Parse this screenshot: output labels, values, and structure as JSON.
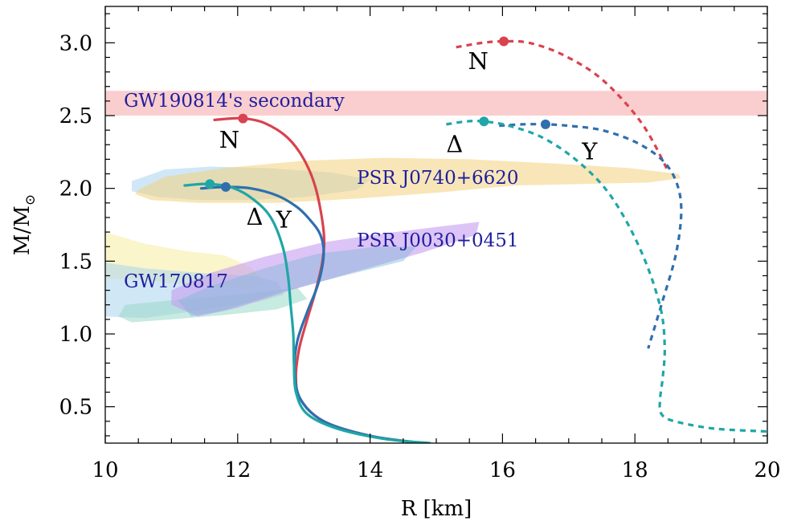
{
  "chart_data": {
    "type": "line",
    "xlabel": "R [km]",
    "ylabel": "M/M",
    "ylabel_subscript": "⊙",
    "xlim": [
      10,
      20
    ],
    "ylim": [
      0.25,
      3.25
    ],
    "xticks": [
      "10",
      "12",
      "14",
      "16",
      "18",
      "20"
    ],
    "yticks": [
      "0.5",
      "1.0",
      "1.5",
      "2.0",
      "2.5",
      "3.0"
    ],
    "grid": false,
    "colors": {
      "N": "#d9424f",
      "Y": "#2f6fae",
      "Delta": "#1fa6a6",
      "gw190814": "#f7b3b3",
      "j0740": "#f2d27e",
      "j0740_alt": "#a9d4ee",
      "j0030": "#c79cf0",
      "j0030_alt": "#7fb8d8",
      "gw170817_a": "#f5ec9e",
      "gw170817_b": "#a9d4ee",
      "gw170817_c": "#99d9c9",
      "annotation_text": "#1f1f9e"
    },
    "series": [
      {
        "key": "N",
        "style": "solid",
        "x": [
          11.65,
          11.9,
          12.1,
          12.4,
          12.75,
          13.0,
          13.18,
          13.3,
          13.28,
          13.18,
          13.05,
          12.93,
          12.88,
          12.95,
          13.3,
          14.0,
          14.8
        ],
        "y": [
          2.47,
          2.48,
          2.48,
          2.45,
          2.35,
          2.2,
          2.0,
          1.7,
          1.5,
          1.3,
          1.1,
          0.9,
          0.7,
          0.55,
          0.4,
          0.3,
          0.25
        ],
        "max_x": 12.08,
        "max_y": 2.48
      },
      {
        "key": "Y",
        "style": "solid",
        "x": [
          11.45,
          11.82,
          12.2,
          12.6,
          12.9,
          13.1,
          13.25,
          13.3,
          13.22,
          13.05,
          12.9,
          12.86,
          12.95,
          13.3,
          14.0,
          14.8
        ],
        "y": [
          2.0,
          2.01,
          2.0,
          1.95,
          1.87,
          1.78,
          1.68,
          1.55,
          1.35,
          1.15,
          0.95,
          0.75,
          0.55,
          0.4,
          0.3,
          0.25
        ],
        "max_x": 11.82,
        "max_y": 2.01
      },
      {
        "key": "Delta",
        "style": "solid",
        "x": [
          11.2,
          11.58,
          11.95,
          12.25,
          12.5,
          12.68,
          12.76,
          12.8,
          12.84,
          12.85,
          12.88,
          13.05,
          13.5,
          14.2,
          14.9
        ],
        "y": [
          2.02,
          2.03,
          2.0,
          1.92,
          1.8,
          1.6,
          1.4,
          1.2,
          1.0,
          0.8,
          0.6,
          0.45,
          0.35,
          0.28,
          0.25
        ],
        "max_x": 11.58,
        "max_y": 2.03
      },
      {
        "key": "N",
        "style": "dashed",
        "x": [
          15.3,
          15.7,
          16.02,
          16.4,
          16.9,
          17.5,
          18.1,
          18.5
        ],
        "y": [
          2.97,
          3.0,
          3.01,
          3.0,
          2.92,
          2.75,
          2.45,
          2.12
        ],
        "max_x": 16.02,
        "max_y": 3.01
      },
      {
        "key": "Y",
        "style": "dashed",
        "x": [
          15.95,
          16.3,
          16.65,
          17.0,
          17.5,
          18.0,
          18.4,
          18.62,
          18.7,
          18.62,
          18.4,
          18.2
        ],
        "y": [
          2.43,
          2.44,
          2.44,
          2.43,
          2.4,
          2.32,
          2.2,
          2.05,
          1.85,
          1.55,
          1.2,
          0.9
        ],
        "max_x": 16.65,
        "max_y": 2.44
      },
      {
        "key": "Delta",
        "style": "dashed",
        "x": [
          15.15,
          15.45,
          15.72,
          16.1,
          16.6,
          17.1,
          17.55,
          17.9,
          18.2,
          18.4,
          18.45,
          18.42,
          18.38,
          18.4,
          18.6,
          19.2,
          20.0
        ],
        "y": [
          2.44,
          2.46,
          2.46,
          2.43,
          2.35,
          2.2,
          2.0,
          1.75,
          1.45,
          1.15,
          0.9,
          0.7,
          0.55,
          0.45,
          0.4,
          0.35,
          0.33
        ],
        "max_x": 15.72,
        "max_y": 2.46
      }
    ],
    "annotations": [
      {
        "text": "GW190814's secondary",
        "x": 10.28,
        "y": 2.56,
        "class": "ann-blue"
      },
      {
        "text": "PSR J0740+6620",
        "x": 13.8,
        "y": 2.03,
        "class": "ann-blue"
      },
      {
        "text": "PSR J0030+0451",
        "x": 13.8,
        "y": 1.6,
        "class": "ann-blue"
      },
      {
        "text": "GW170817",
        "x": 10.28,
        "y": 1.32,
        "class": "ann-blue"
      },
      {
        "text": "N",
        "x": 11.72,
        "y": 2.28,
        "class": "curve-label"
      },
      {
        "text": "Δ",
        "x": 12.13,
        "y": 1.75,
        "class": "curve-label"
      },
      {
        "text": "Y",
        "x": 12.58,
        "y": 1.73,
        "class": "curve-label"
      },
      {
        "text": "N",
        "x": 15.48,
        "y": 2.82,
        "class": "curve-label"
      },
      {
        "text": "Δ",
        "x": 15.15,
        "y": 2.25,
        "class": "curve-label"
      },
      {
        "text": "Y",
        "x": 17.2,
        "y": 2.2,
        "class": "curve-label"
      }
    ]
  }
}
